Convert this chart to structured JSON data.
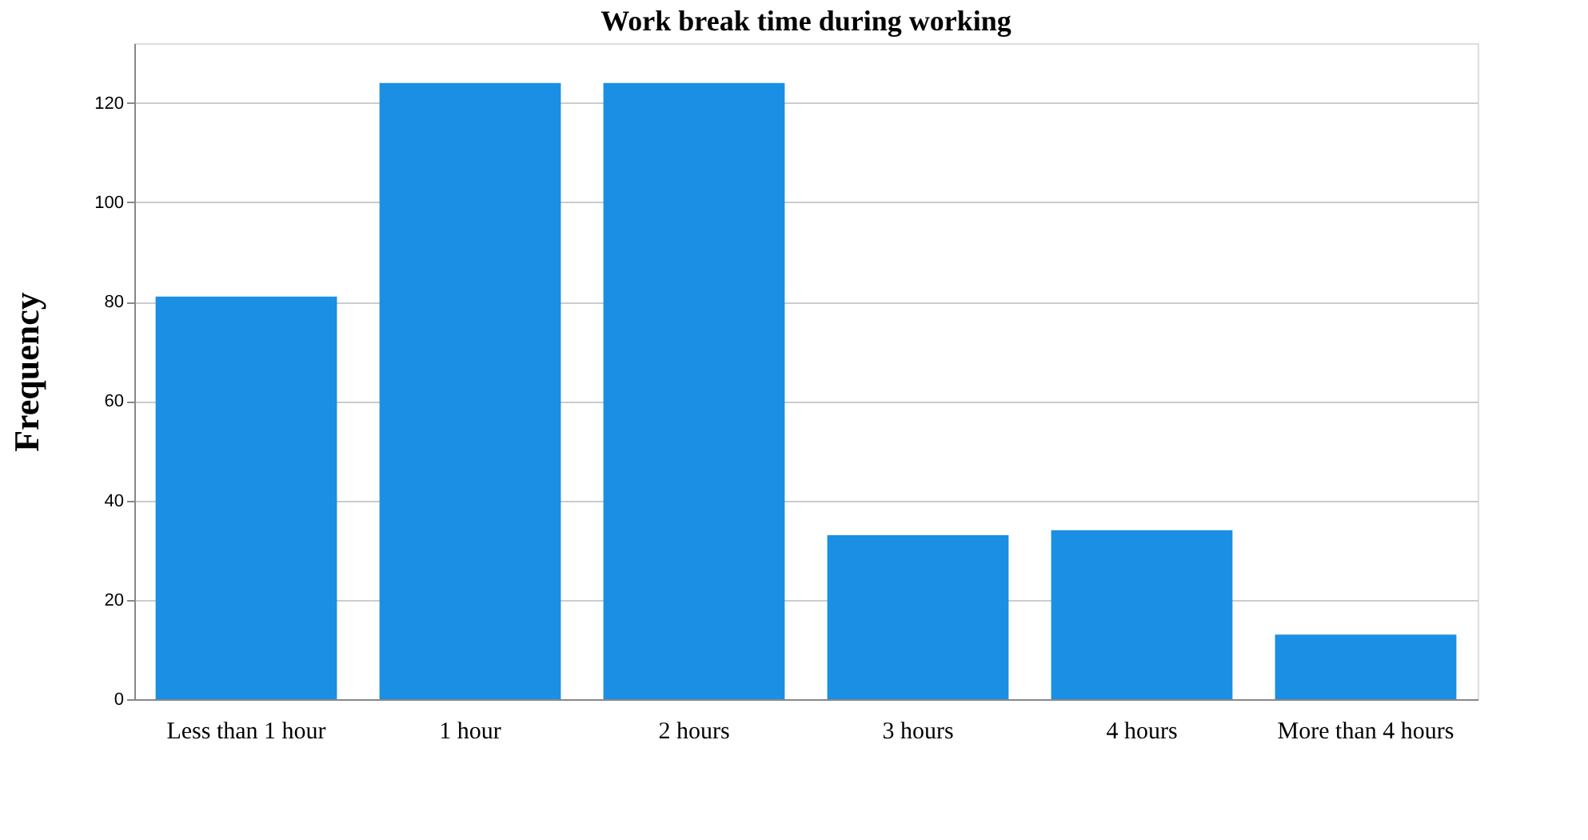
{
  "chart_data": {
    "type": "bar",
    "title": "Work break time during working",
    "ylabel": "Frequency",
    "categories": [
      "Less than 1 hour",
      "1 hour",
      "2 hours",
      "3 hours",
      "4 hours",
      "More than 4 hours"
    ],
    "values": [
      81,
      124,
      124,
      33,
      34,
      13
    ],
    "color": "#1a8fe3",
    "ylim": [
      0,
      132
    ],
    "yticks": [
      0,
      20,
      40,
      60,
      80,
      100,
      120
    ],
    "grid": "y"
  }
}
